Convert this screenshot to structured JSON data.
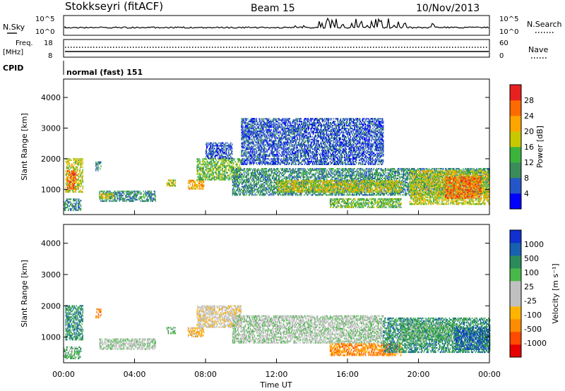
{
  "header": {
    "station": "Stokkseyri (fitACF)",
    "beam": "Beam 15",
    "date": "10/Nov/2013"
  },
  "top_panels": {
    "nsky_label": "N.Sky",
    "nsky_ticks": [
      "10^5",
      "10^0"
    ],
    "nsearch_label": "N.Search",
    "nsearch_ticks": [
      "10^5",
      "10^0"
    ],
    "freq_label_line1": "Freq.",
    "freq_label_line2": "[MHz]",
    "freq_ticks": [
      "18",
      "8"
    ],
    "nave_label": "Nave",
    "nave_ticks": [
      "60",
      "0"
    ],
    "cpid_label": "CPID",
    "cpid_value": "normal (fast) 151"
  },
  "chart_data": [
    {
      "type": "heatmap",
      "quantity": "power",
      "ylabel": "Slant Range [km]",
      "ylim": [
        180,
        4600
      ],
      "y_ticks": [
        "4000",
        "3000",
        "2000",
        "1000"
      ],
      "xlim_hours": [
        0,
        24
      ],
      "colorbar_label": "Power [dB]",
      "colorbar_ticks": [
        "28",
        "24",
        "20",
        "16",
        "12",
        "8",
        "4"
      ],
      "colorbar_colors": [
        "#0000ff",
        "#2456c8",
        "#3a8c5a",
        "#3cb43c",
        "#c8c800",
        "#ffa500",
        "#ff6a00",
        "#e82020"
      ],
      "regions": [
        {
          "t0": 0.1,
          "t1": 1.1,
          "r0": 900,
          "r1": 2000,
          "level": 4
        },
        {
          "t0": 0.2,
          "t1": 0.7,
          "r0": 1000,
          "r1": 1600,
          "level": 6
        },
        {
          "t0": 0.0,
          "t1": 1.0,
          "r0": 300,
          "r1": 700,
          "level": 2
        },
        {
          "t0": 1.8,
          "t1": 2.1,
          "r0": 1600,
          "r1": 1900,
          "level": 2
        },
        {
          "t0": 2.0,
          "t1": 5.2,
          "r0": 600,
          "r1": 950,
          "level": 2
        },
        {
          "t0": 2.0,
          "t1": 2.8,
          "r0": 700,
          "r1": 850,
          "level": 4
        },
        {
          "t0": 5.8,
          "t1": 6.3,
          "r0": 1100,
          "r1": 1300,
          "level": 4
        },
        {
          "t0": 7.0,
          "t1": 7.9,
          "r0": 1000,
          "r1": 1300,
          "level": 5
        },
        {
          "t0": 7.5,
          "t1": 10.0,
          "r0": 1300,
          "r1": 2000,
          "level": 3
        },
        {
          "t0": 8.0,
          "t1": 9.5,
          "r0": 2000,
          "r1": 2500,
          "level": 1
        },
        {
          "t0": 9.5,
          "t1": 24.0,
          "r0": 800,
          "r1": 1700,
          "level": 2
        },
        {
          "t0": 12.0,
          "t1": 19.0,
          "r0": 900,
          "r1": 1300,
          "level": 4
        },
        {
          "t0": 15.0,
          "t1": 19.0,
          "r0": 400,
          "r1": 700,
          "level": 3
        },
        {
          "t0": 19.5,
          "t1": 24.0,
          "r0": 500,
          "r1": 1600,
          "level": 4
        },
        {
          "t0": 21.5,
          "t1": 23.5,
          "r0": 700,
          "r1": 1400,
          "level": 6
        },
        {
          "t0": 10.0,
          "t1": 18.0,
          "r0": 1800,
          "r1": 3300,
          "level": 1
        }
      ]
    },
    {
      "type": "heatmap",
      "quantity": "velocity",
      "ylabel": "Slant Range [km]",
      "ylim": [
        180,
        4600
      ],
      "y_ticks": [
        "4000",
        "3000",
        "2000",
        "1000"
      ],
      "xlim_hours": [
        0,
        24
      ],
      "x_ticks": [
        "00:00",
        "04:00",
        "08:00",
        "12:00",
        "16:00",
        "20:00",
        "00:00"
      ],
      "xlabel": "Time UT",
      "colorbar_label": "Velocity [m s⁻¹]",
      "colorbar_ticks": [
        "1000",
        "500",
        "100",
        "25",
        "-25",
        "-100",
        "-500",
        "-1000"
      ],
      "colorbar_colors": [
        "#e80000",
        "#ff4a00",
        "#ff8c00",
        "#ffb400",
        "#c0c0c0",
        "#c0c0c0",
        "#48b848",
        "#2a8c5a",
        "#1860b0",
        "#1030d0"
      ],
      "regions": [
        {
          "t0": 0.1,
          "t1": 1.1,
          "r0": 900,
          "r1": 2000,
          "level": 7
        },
        {
          "t0": 0.0,
          "t1": 1.0,
          "r0": 300,
          "r1": 700,
          "level": 6
        },
        {
          "t0": 1.8,
          "t1": 2.1,
          "r0": 1600,
          "r1": 1900,
          "level": 2
        },
        {
          "t0": 2.0,
          "t1": 5.2,
          "r0": 600,
          "r1": 950,
          "level": 5
        },
        {
          "t0": 5.8,
          "t1": 6.3,
          "r0": 1100,
          "r1": 1300,
          "level": 6
        },
        {
          "t0": 7.0,
          "t1": 7.9,
          "r0": 1000,
          "r1": 1300,
          "level": 3
        },
        {
          "t0": 7.5,
          "t1": 10.0,
          "r0": 1300,
          "r1": 2000,
          "level": 4
        },
        {
          "t0": 9.5,
          "t1": 18.0,
          "r0": 800,
          "r1": 1700,
          "level": 5
        },
        {
          "t0": 15.0,
          "t1": 19.0,
          "r0": 400,
          "r1": 800,
          "level": 2
        },
        {
          "t0": 18.0,
          "t1": 24.0,
          "r0": 500,
          "r1": 1600,
          "level": 7
        },
        {
          "t0": 19.0,
          "t1": 22.0,
          "r0": 900,
          "r1": 1400,
          "level": 6
        },
        {
          "t0": 22.0,
          "t1": 24.0,
          "r0": 600,
          "r1": 1300,
          "level": 8
        }
      ]
    }
  ]
}
